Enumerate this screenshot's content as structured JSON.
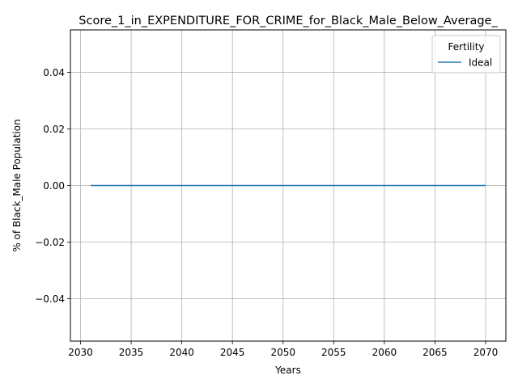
{
  "chart_data": {
    "type": "line",
    "title": "Score_1_in_EXPENDITURE_FOR_CRIME_for_Black_Male_Below_Average_",
    "xlabel": "Years",
    "ylabel": "% of Black_Male Population",
    "xlim": [
      2029,
      2072
    ],
    "ylim": [
      -0.055,
      0.055
    ],
    "xticks": [
      2030,
      2035,
      2040,
      2045,
      2050,
      2055,
      2060,
      2065,
      2070
    ],
    "xtick_labels": [
      "2030",
      "2035",
      "2040",
      "2045",
      "2050",
      "2055",
      "2060",
      "2065",
      "2070"
    ],
    "yticks": [
      -0.04,
      -0.02,
      0.0,
      0.02,
      0.04
    ],
    "ytick_labels": [
      "−0.04",
      "−0.02",
      "0.00",
      "0.02",
      "0.04"
    ],
    "grid": true,
    "legend": {
      "title": "Fertility",
      "placement": "top-right"
    },
    "series": [
      {
        "name": "Ideal",
        "color": "#1f77b4",
        "x": [
          2031,
          2035,
          2040,
          2045,
          2050,
          2055,
          2060,
          2065,
          2070
        ],
        "values": [
          0,
          0,
          0,
          0,
          0,
          0,
          0,
          0,
          0
        ]
      }
    ]
  }
}
